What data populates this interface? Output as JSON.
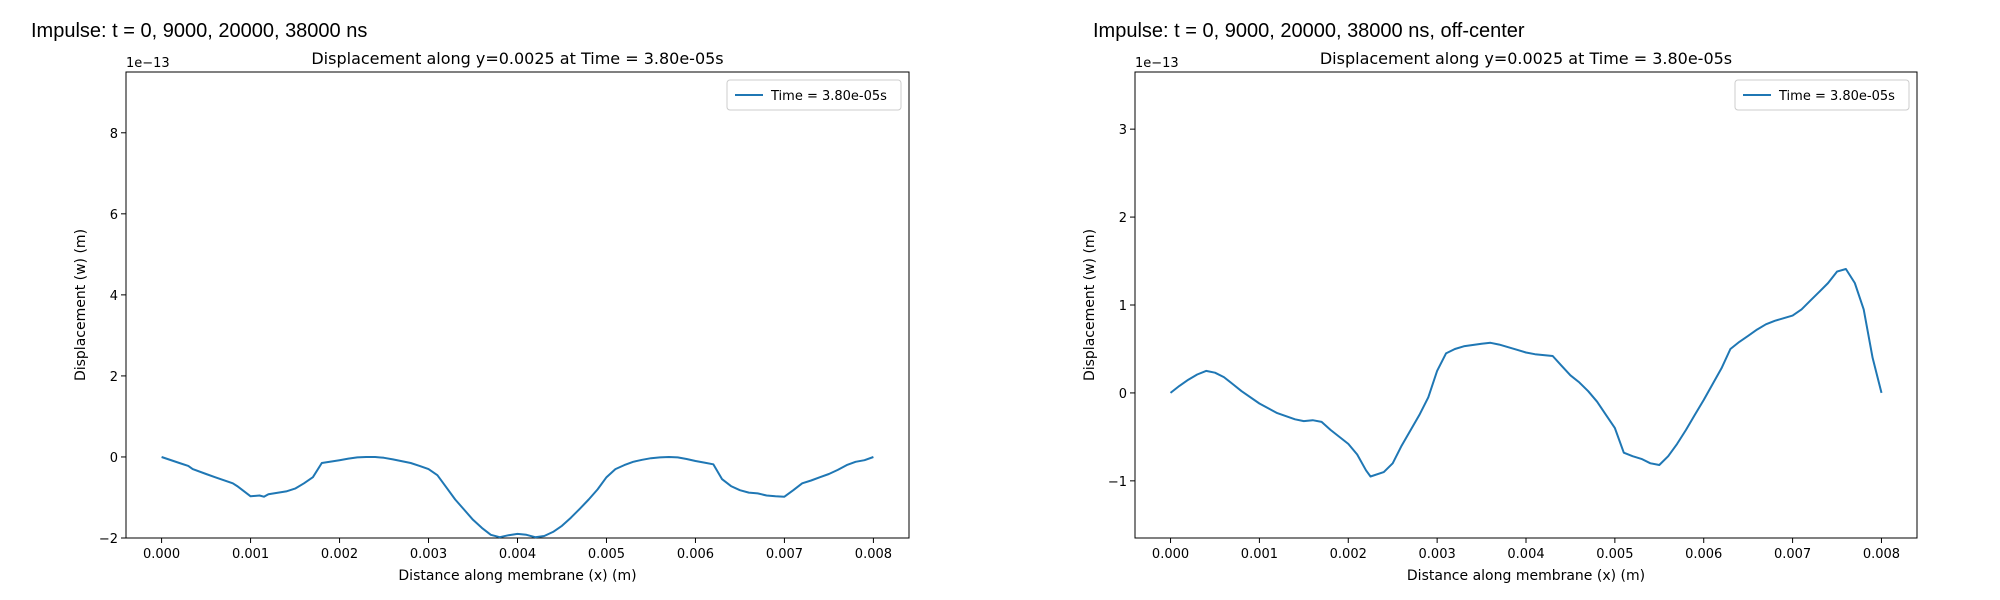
{
  "panels": [
    {
      "heading": "Impulse: t = 0, 9000, 20000, 38000 ns"
    },
    {
      "heading": "Impulse: t = 0, 9000, 20000, 38000 ns, off-center"
    }
  ],
  "chart_data": [
    {
      "type": "line",
      "title": "Displacement along y=0.0025 at Time = 3.80e-05s",
      "xlabel": "Distance along membrane (x) (m)",
      "ylabel": "Displacement (w) (m)",
      "y_offset_text": "1e−13",
      "xlim": [
        -0.0004,
        0.0084
      ],
      "ylim": [
        -2.0,
        9.5
      ],
      "xticks": [
        0,
        0.001,
        0.002,
        0.003,
        0.004,
        0.005,
        0.006,
        0.007,
        0.008
      ],
      "xtick_labels": [
        "0.000",
        "0.001",
        "0.002",
        "0.003",
        "0.004",
        "0.005",
        "0.006",
        "0.007",
        "0.008"
      ],
      "yticks": [
        -2,
        0,
        2,
        4,
        6,
        8
      ],
      "ytick_labels": [
        "−2",
        "0",
        "2",
        "4",
        "6",
        "8"
      ],
      "grid": false,
      "legend_position": "top-right",
      "series": [
        {
          "name": "Time = 3.80e-05s",
          "color": "#1f77b4",
          "x": [
            0,
            0.0002,
            0.0003,
            0.00035,
            0.0005,
            0.0006,
            0.0008,
            0.00085,
            0.001,
            0.0011,
            0.00115,
            0.0012,
            0.0014,
            0.0015,
            0.0016,
            0.0017,
            0.0018,
            0.002,
            0.0021,
            0.0022,
            0.0023,
            0.0024,
            0.0025,
            0.0026,
            0.0028,
            0.0029,
            0.003,
            0.0031,
            0.0032,
            0.0033,
            0.0034,
            0.0035,
            0.0036,
            0.0037,
            0.0038,
            0.0039,
            0.004,
            0.0041,
            0.0042,
            0.0043,
            0.0044,
            0.0045,
            0.0046,
            0.0047,
            0.0048,
            0.0049,
            0.005,
            0.0051,
            0.0052,
            0.0053,
            0.0054,
            0.0055,
            0.0056,
            0.0057,
            0.0058,
            0.0059,
            0.006,
            0.0061,
            0.0062,
            0.0063,
            0.0064,
            0.0065,
            0.0066,
            0.0067,
            0.0068,
            0.0069,
            0.007,
            0.0071,
            0.0072,
            0.0073,
            0.0074,
            0.0075,
            0.0076,
            0.0077,
            0.0078,
            0.0079,
            0.008
          ],
          "y": [
            0,
            -0.15,
            -0.22,
            -0.3,
            -0.42,
            -0.5,
            -0.65,
            -0.72,
            -0.97,
            -0.95,
            -0.98,
            -0.92,
            -0.85,
            -0.78,
            -0.65,
            -0.5,
            -0.15,
            -0.08,
            -0.04,
            -0.01,
            0,
            0,
            -0.02,
            -0.06,
            -0.15,
            -0.22,
            -0.3,
            -0.45,
            -0.75,
            -1.05,
            -1.3,
            -1.55,
            -1.75,
            -1.92,
            -1.98,
            -1.93,
            -1.9,
            -1.92,
            -1.98,
            -1.95,
            -1.85,
            -1.7,
            -1.5,
            -1.28,
            -1.05,
            -0.8,
            -0.5,
            -0.3,
            -0.2,
            -0.12,
            -0.07,
            -0.03,
            -0.01,
            0,
            -0.01,
            -0.05,
            -0.1,
            -0.14,
            -0.18,
            -0.55,
            -0.72,
            -0.82,
            -0.88,
            -0.9,
            -0.95,
            -0.97,
            -0.98,
            -0.82,
            -0.65,
            -0.58,
            -0.5,
            -0.42,
            -0.32,
            -0.2,
            -0.12,
            -0.08,
            0
          ]
        }
      ]
    },
    {
      "type": "line",
      "title": "Displacement along y=0.0025 at Time = 3.80e-05s",
      "xlabel": "Distance along membrane (x) (m)",
      "ylabel": "Displacement (w) (m)",
      "y_offset_text": "1e−13",
      "xlim": [
        -0.0004,
        0.0084
      ],
      "ylim": [
        -1.65,
        3.65
      ],
      "xticks": [
        0,
        0.001,
        0.002,
        0.003,
        0.004,
        0.005,
        0.006,
        0.007,
        0.008
      ],
      "xtick_labels": [
        "0.000",
        "0.001",
        "0.002",
        "0.003",
        "0.004",
        "0.005",
        "0.006",
        "0.007",
        "0.008"
      ],
      "yticks": [
        -1,
        0,
        1,
        2,
        3
      ],
      "ytick_labels": [
        "−1",
        "0",
        "1",
        "2",
        "3"
      ],
      "grid": false,
      "legend_position": "top-right",
      "series": [
        {
          "name": "Time = 3.80e-05s",
          "color": "#1f77b4",
          "x": [
            0,
            0.0001,
            0.0002,
            0.0003,
            0.0004,
            0.0005,
            0.0006,
            0.0007,
            0.0008,
            0.001,
            0.0012,
            0.0014,
            0.0015,
            0.0016,
            0.0017,
            0.0018,
            0.0019,
            0.002,
            0.0021,
            0.0022,
            0.00225,
            0.0024,
            0.0025,
            0.0026,
            0.0028,
            0.0029,
            0.003,
            0.0031,
            0.0032,
            0.0033,
            0.0035,
            0.0036,
            0.0037,
            0.0038,
            0.0039,
            0.004,
            0.0041,
            0.0042,
            0.0043,
            0.0044,
            0.0045,
            0.0046,
            0.0047,
            0.0048,
            0.0049,
            0.005,
            0.0051,
            0.0052,
            0.0053,
            0.0054,
            0.0055,
            0.0056,
            0.0057,
            0.0058,
            0.0059,
            0.006,
            0.0061,
            0.0062,
            0.0063,
            0.0064,
            0.0065,
            0.0066,
            0.0067,
            0.0068,
            0.0069,
            0.007,
            0.0071,
            0.0072,
            0.0073,
            0.0074,
            0.0075,
            0.0076,
            0.0077,
            0.0078,
            0.0079,
            0.008
          ],
          "y": [
            0,
            0.08,
            0.15,
            0.21,
            0.25,
            0.23,
            0.18,
            0.1,
            0.02,
            -0.12,
            -0.23,
            -0.3,
            -0.32,
            -0.31,
            -0.33,
            -0.42,
            -0.5,
            -0.58,
            -0.7,
            -0.88,
            -0.95,
            -0.9,
            -0.8,
            -0.6,
            -0.25,
            -0.05,
            0.25,
            0.45,
            0.5,
            0.53,
            0.56,
            0.57,
            0.55,
            0.52,
            0.49,
            0.46,
            0.44,
            0.43,
            0.42,
            0.31,
            0.2,
            0.12,
            0.02,
            -0.1,
            -0.25,
            -0.4,
            -0.68,
            -0.72,
            -0.75,
            -0.8,
            -0.82,
            -0.72,
            -0.58,
            -0.42,
            -0.25,
            -0.08,
            0.1,
            0.28,
            0.5,
            0.58,
            0.65,
            0.72,
            0.78,
            0.82,
            0.85,
            0.88,
            0.95,
            1.05,
            1.15,
            1.25,
            1.38,
            1.41,
            1.25,
            0.95,
            0.4,
            0
          ]
        }
      ]
    }
  ]
}
